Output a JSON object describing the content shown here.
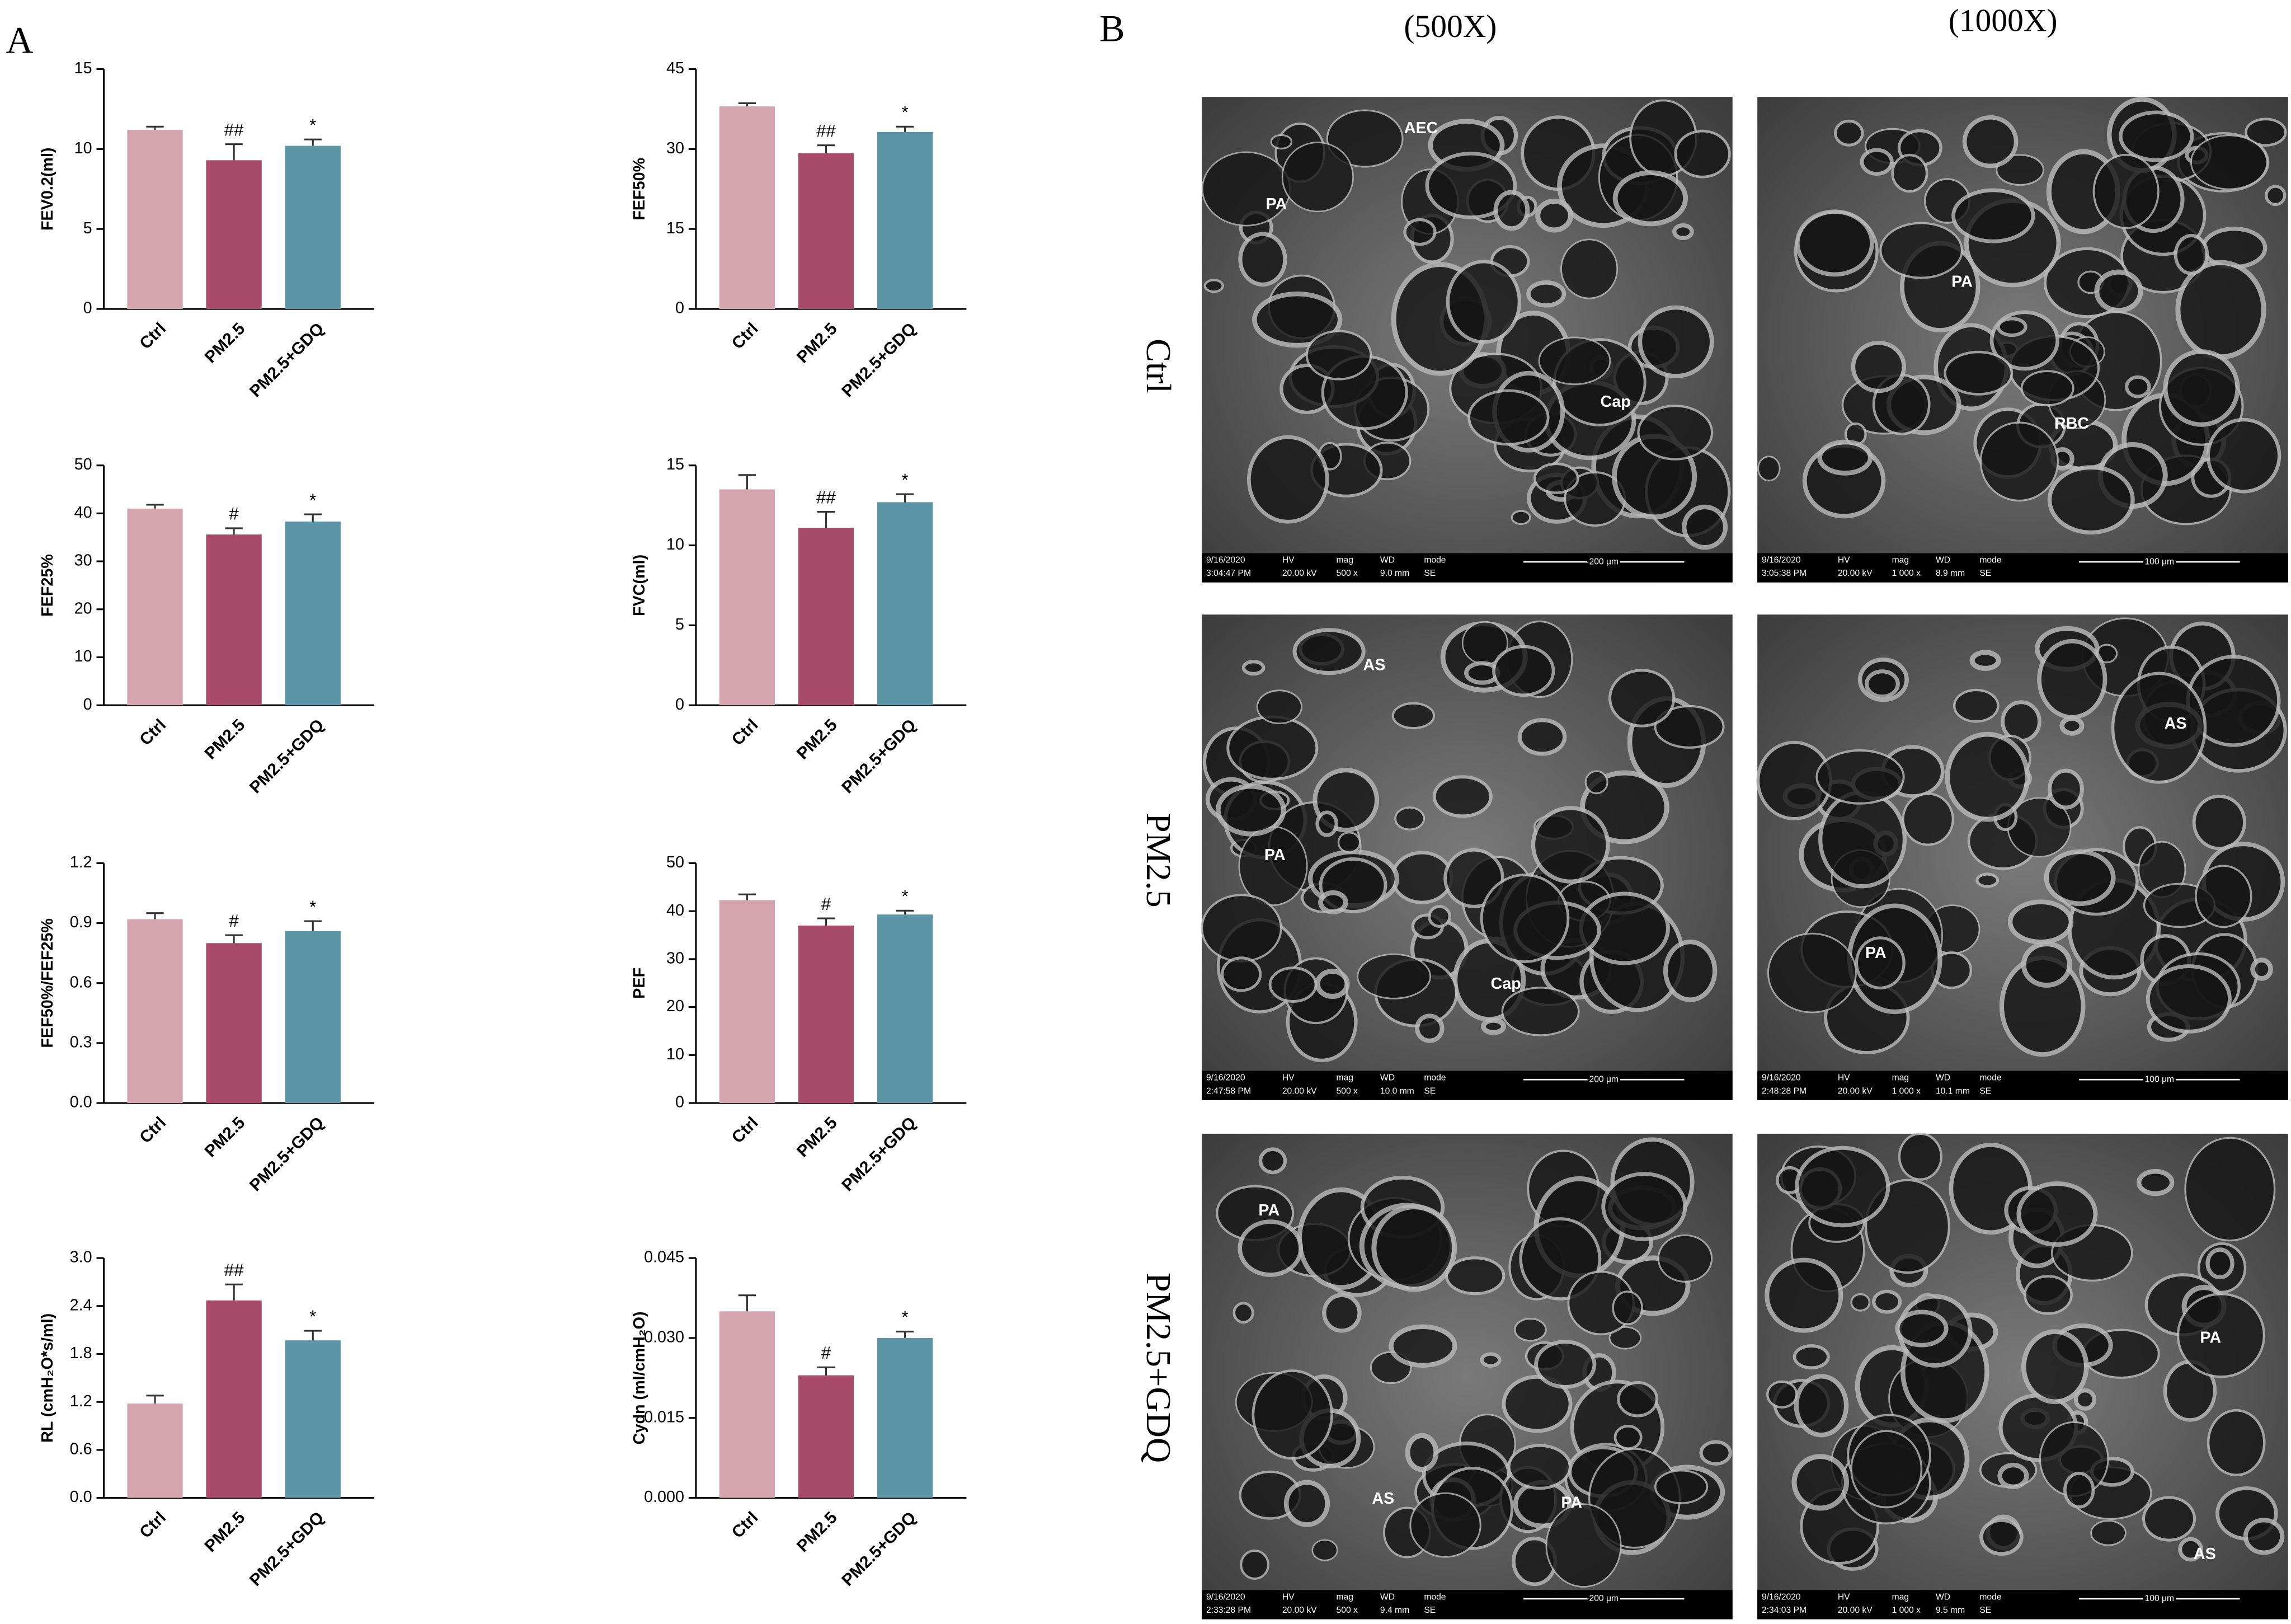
{
  "panel_labels": [
    "A",
    "B"
  ],
  "chart_data": [
    {
      "type": "bar",
      "ylabel": "FEV0.2(ml)",
      "categories": [
        "Ctrl",
        "PM2.5",
        "PM2.5+GDQ"
      ],
      "values": [
        11.2,
        9.3,
        10.2
      ],
      "errors": [
        0.2,
        1.0,
        0.4
      ],
      "annotations": [
        null,
        "##",
        "*"
      ],
      "colors": [
        "#d4a5ae",
        "#a84b6b",
        "#5c95a6"
      ],
      "ylim": [
        0,
        15
      ],
      "yticks": [
        0,
        5,
        10,
        15
      ]
    },
    {
      "type": "bar",
      "ylabel": "FEF50%",
      "categories": [
        "Ctrl",
        "PM2.5",
        "PM2.5+GDQ"
      ],
      "values": [
        38,
        29.2,
        33.2
      ],
      "errors": [
        0.6,
        1.5,
        1.0
      ],
      "annotations": [
        null,
        "##",
        "*"
      ],
      "colors": [
        "#d4a5ae",
        "#a84b6b",
        "#5c95a6"
      ],
      "ylim": [
        0,
        45
      ],
      "yticks": [
        0,
        15,
        30,
        45
      ]
    },
    {
      "type": "bar",
      "ylabel": "FEF25%",
      "categories": [
        "Ctrl",
        "PM2.5",
        "PM2.5+GDQ"
      ],
      "values": [
        41,
        35.6,
        38.3
      ],
      "errors": [
        0.8,
        1.3,
        1.5
      ],
      "annotations": [
        null,
        "#",
        "*"
      ],
      "colors": [
        "#d4a5ae",
        "#a84b6b",
        "#5c95a6"
      ],
      "ylim": [
        0,
        50
      ],
      "yticks": [
        0,
        10,
        20,
        30,
        40,
        50
      ]
    },
    {
      "type": "bar",
      "ylabel": "FVC(ml)",
      "categories": [
        "Ctrl",
        "PM2.5",
        "PM2.5+GDQ"
      ],
      "values": [
        13.5,
        11.1,
        12.7
      ],
      "errors": [
        0.9,
        1.0,
        0.5
      ],
      "annotations": [
        null,
        "##",
        "*"
      ],
      "colors": [
        "#d4a5ae",
        "#a84b6b",
        "#5c95a6"
      ],
      "ylim": [
        0,
        15
      ],
      "yticks": [
        0,
        5,
        10,
        15
      ]
    },
    {
      "type": "bar",
      "ylabel": "FEF50%/FEF25%",
      "categories": [
        "Ctrl",
        "PM2.5",
        "PM2.5+GDQ"
      ],
      "values": [
        0.92,
        0.8,
        0.86
      ],
      "errors": [
        0.03,
        0.04,
        0.05
      ],
      "annotations": [
        null,
        "#",
        "*"
      ],
      "colors": [
        "#d4a5ae",
        "#a84b6b",
        "#5c95a6"
      ],
      "ylim": [
        0,
        1.2
      ],
      "yticks": [
        {
          "value": 0,
          "label": "0.0"
        },
        0.3,
        0.6,
        0.9,
        1.2
      ]
    },
    {
      "type": "bar",
      "ylabel": "PEF",
      "categories": [
        "Ctrl",
        "PM2.5",
        "PM2.5+GDQ"
      ],
      "values": [
        42.3,
        37,
        39.3
      ],
      "errors": [
        1.2,
        1.5,
        0.8
      ],
      "annotations": [
        null,
        "#",
        "*"
      ],
      "colors": [
        "#d4a5ae",
        "#a84b6b",
        "#5c95a6"
      ],
      "ylim": [
        0,
        50
      ],
      "yticks": [
        0,
        10,
        20,
        30,
        40,
        50
      ]
    },
    {
      "type": "bar",
      "ylabel": "RL (cmH₂O*s/ml)",
      "categories": [
        "Ctrl",
        "PM2.5",
        "PM2.5+GDQ"
      ],
      "values": [
        1.18,
        2.47,
        1.97
      ],
      "errors": [
        0.1,
        0.2,
        0.12
      ],
      "annotations": [
        null,
        "##",
        "*"
      ],
      "colors": [
        "#d4a5ae",
        "#a84b6b",
        "#5c95a6"
      ],
      "ylim": [
        0,
        3.0
      ],
      "yticks": [
        {
          "value": 0,
          "label": "0.0"
        },
        0.6,
        1.2,
        1.8,
        2.4,
        {
          "value": 3.0,
          "label": "3.0"
        }
      ]
    },
    {
      "type": "bar",
      "ylabel": "Cydn (ml/cmH₂O)",
      "categories": [
        "Ctrl",
        "PM2.5",
        "PM2.5+GDQ"
      ],
      "values": [
        0.035,
        0.023,
        0.03
      ],
      "errors": [
        0.003,
        0.0015,
        0.0012
      ],
      "annotations": [
        null,
        "#",
        "*"
      ],
      "colors": [
        "#d4a5ae",
        "#a84b6b",
        "#5c95a6"
      ],
      "ylim": [
        0,
        0.045
      ],
      "yticks": [
        {
          "value": 0,
          "label": "0.000"
        },
        {
          "value": 0.015,
          "label": "0.015"
        },
        {
          "value": 0.03,
          "label": "0.030"
        },
        {
          "value": 0.045,
          "label": "0.045"
        }
      ]
    }
  ],
  "micrographs": {
    "columns": [
      "(500X)",
      "(1000X)"
    ],
    "rows": [
      "Ctrl",
      "PM2.5",
      "PM2.5+GDQ"
    ],
    "info_headers": [
      "HV",
      "mag",
      "WD",
      "mode"
    ],
    "images": [
      {
        "labels": [
          "AEC",
          "PA",
          "Cap"
        ],
        "date": "9/16/2020",
        "time": "3:04:47 PM",
        "hv": "20.00 kV",
        "mag": "500 x",
        "wd": "9.0 mm",
        "mode": "SE",
        "scale": "200 μm"
      },
      {
        "labels": [
          "PA",
          "RBC"
        ],
        "date": "9/16/2020",
        "time": "3:05:38 PM",
        "hv": "20.00 kV",
        "mag": "1 000 x",
        "wd": "8.9 mm",
        "mode": "SE",
        "scale": "100 μm"
      },
      {
        "labels": [
          "AS",
          "PA",
          "Cap"
        ],
        "date": "9/16/2020",
        "time": "2:47:58 PM",
        "hv": "20.00 kV",
        "mag": "500 x",
        "wd": "10.0 mm",
        "mode": "SE",
        "scale": "200 μm"
      },
      {
        "labels": [
          "AS",
          "PA"
        ],
        "date": "9/16/2020",
        "time": "2:48:28 PM",
        "hv": "20.00 kV",
        "mag": "1 000 x",
        "wd": "10.1 mm",
        "mode": "SE",
        "scale": "100 μm"
      },
      {
        "labels": [
          "PA",
          "AS",
          "PA"
        ],
        "date": "9/16/2020",
        "time": "2:33:28 PM",
        "hv": "20.00 kV",
        "mag": "500 x",
        "wd": "9.4 mm",
        "mode": "SE",
        "scale": "200 μm"
      },
      {
        "labels": [
          "PA",
          "AS"
        ],
        "date": "9/16/2020",
        "time": "2:34:03 PM",
        "hv": "20.00 kV",
        "mag": "1 000 x",
        "wd": "9.5 mm",
        "mode": "SE",
        "scale": "100 μm"
      }
    ]
  }
}
